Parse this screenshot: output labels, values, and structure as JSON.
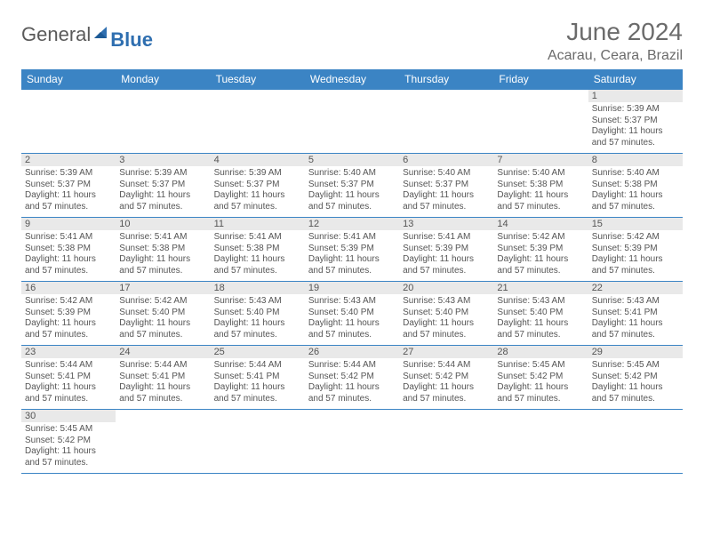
{
  "logo": {
    "text1": "General",
    "text2": "Blue"
  },
  "title": "June 2024",
  "location": "Acarau, Ceara, Brazil",
  "colors": {
    "header_bg": "#3b84c4",
    "header_text": "#ffffff",
    "daynum_bg": "#e9e9e9",
    "border": "#3b84c4",
    "text": "#555555",
    "logo_gray": "#5a5a5a",
    "logo_blue": "#2f6fb0"
  },
  "day_headers": [
    "Sunday",
    "Monday",
    "Tuesday",
    "Wednesday",
    "Thursday",
    "Friday",
    "Saturday"
  ],
  "weeks": [
    [
      null,
      null,
      null,
      null,
      null,
      null,
      {
        "n": "1",
        "sr": "5:39 AM",
        "ss": "5:37 PM",
        "dl": "11 hours and 57 minutes."
      }
    ],
    [
      {
        "n": "2",
        "sr": "5:39 AM",
        "ss": "5:37 PM",
        "dl": "11 hours and 57 minutes."
      },
      {
        "n": "3",
        "sr": "5:39 AM",
        "ss": "5:37 PM",
        "dl": "11 hours and 57 minutes."
      },
      {
        "n": "4",
        "sr": "5:39 AM",
        "ss": "5:37 PM",
        "dl": "11 hours and 57 minutes."
      },
      {
        "n": "5",
        "sr": "5:40 AM",
        "ss": "5:37 PM",
        "dl": "11 hours and 57 minutes."
      },
      {
        "n": "6",
        "sr": "5:40 AM",
        "ss": "5:37 PM",
        "dl": "11 hours and 57 minutes."
      },
      {
        "n": "7",
        "sr": "5:40 AM",
        "ss": "5:38 PM",
        "dl": "11 hours and 57 minutes."
      },
      {
        "n": "8",
        "sr": "5:40 AM",
        "ss": "5:38 PM",
        "dl": "11 hours and 57 minutes."
      }
    ],
    [
      {
        "n": "9",
        "sr": "5:41 AM",
        "ss": "5:38 PM",
        "dl": "11 hours and 57 minutes."
      },
      {
        "n": "10",
        "sr": "5:41 AM",
        "ss": "5:38 PM",
        "dl": "11 hours and 57 minutes."
      },
      {
        "n": "11",
        "sr": "5:41 AM",
        "ss": "5:38 PM",
        "dl": "11 hours and 57 minutes."
      },
      {
        "n": "12",
        "sr": "5:41 AM",
        "ss": "5:39 PM",
        "dl": "11 hours and 57 minutes."
      },
      {
        "n": "13",
        "sr": "5:41 AM",
        "ss": "5:39 PM",
        "dl": "11 hours and 57 minutes."
      },
      {
        "n": "14",
        "sr": "5:42 AM",
        "ss": "5:39 PM",
        "dl": "11 hours and 57 minutes."
      },
      {
        "n": "15",
        "sr": "5:42 AM",
        "ss": "5:39 PM",
        "dl": "11 hours and 57 minutes."
      }
    ],
    [
      {
        "n": "16",
        "sr": "5:42 AM",
        "ss": "5:39 PM",
        "dl": "11 hours and 57 minutes."
      },
      {
        "n": "17",
        "sr": "5:42 AM",
        "ss": "5:40 PM",
        "dl": "11 hours and 57 minutes."
      },
      {
        "n": "18",
        "sr": "5:43 AM",
        "ss": "5:40 PM",
        "dl": "11 hours and 57 minutes."
      },
      {
        "n": "19",
        "sr": "5:43 AM",
        "ss": "5:40 PM",
        "dl": "11 hours and 57 minutes."
      },
      {
        "n": "20",
        "sr": "5:43 AM",
        "ss": "5:40 PM",
        "dl": "11 hours and 57 minutes."
      },
      {
        "n": "21",
        "sr": "5:43 AM",
        "ss": "5:40 PM",
        "dl": "11 hours and 57 minutes."
      },
      {
        "n": "22",
        "sr": "5:43 AM",
        "ss": "5:41 PM",
        "dl": "11 hours and 57 minutes."
      }
    ],
    [
      {
        "n": "23",
        "sr": "5:44 AM",
        "ss": "5:41 PM",
        "dl": "11 hours and 57 minutes."
      },
      {
        "n": "24",
        "sr": "5:44 AM",
        "ss": "5:41 PM",
        "dl": "11 hours and 57 minutes."
      },
      {
        "n": "25",
        "sr": "5:44 AM",
        "ss": "5:41 PM",
        "dl": "11 hours and 57 minutes."
      },
      {
        "n": "26",
        "sr": "5:44 AM",
        "ss": "5:42 PM",
        "dl": "11 hours and 57 minutes."
      },
      {
        "n": "27",
        "sr": "5:44 AM",
        "ss": "5:42 PM",
        "dl": "11 hours and 57 minutes."
      },
      {
        "n": "28",
        "sr": "5:45 AM",
        "ss": "5:42 PM",
        "dl": "11 hours and 57 minutes."
      },
      {
        "n": "29",
        "sr": "5:45 AM",
        "ss": "5:42 PM",
        "dl": "11 hours and 57 minutes."
      }
    ],
    [
      {
        "n": "30",
        "sr": "5:45 AM",
        "ss": "5:42 PM",
        "dl": "11 hours and 57 minutes."
      },
      null,
      null,
      null,
      null,
      null,
      null
    ]
  ],
  "labels": {
    "sunrise": "Sunrise: ",
    "sunset": "Sunset: ",
    "daylight": "Daylight: "
  }
}
